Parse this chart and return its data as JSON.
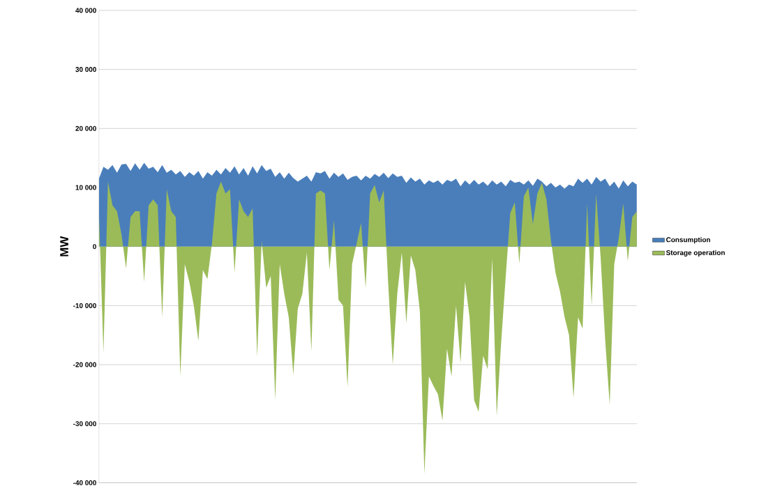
{
  "chart_data": {
    "type": "area",
    "ylabel": "MW",
    "categories": [
      null,
      null,
      null,
      null,
      null,
      null,
      null,
      null,
      null,
      null,
      null,
      null,
      null,
      null,
      null,
      null,
      null,
      null,
      null,
      null,
      null,
      null,
      null,
      null,
      null,
      null,
      null,
      null,
      null,
      null,
      null,
      null,
      null,
      null,
      null,
      null,
      null,
      null,
      null,
      null,
      null,
      null,
      null,
      null,
      null,
      null,
      null,
      null,
      null,
      null,
      null,
      null,
      null,
      null,
      null,
      null,
      null,
      null,
      null,
      null,
      null,
      null,
      null,
      null,
      null,
      null,
      null,
      null,
      null,
      null,
      null,
      null,
      null,
      null,
      null,
      null,
      null,
      null,
      null,
      null,
      null,
      null,
      null,
      null,
      null,
      null,
      null,
      null,
      null,
      null,
      null,
      null,
      null,
      null,
      null,
      null,
      null,
      null,
      null,
      null,
      null,
      null,
      null,
      null,
      null,
      null,
      null,
      null,
      null,
      null,
      null,
      null,
      null,
      null,
      null,
      null,
      null,
      null,
      null,
      null
    ],
    "series": [
      {
        "name": "Consumption",
        "color": "#4a7ebb",
        "values": [
          11500,
          13500,
          13000,
          13800,
          12500,
          13900,
          14000,
          12800,
          14100,
          13000,
          14200,
          13200,
          13500,
          12600,
          13800,
          12500,
          13000,
          12200,
          12800,
          11800,
          12600,
          12000,
          12800,
          11500,
          12600,
          12000,
          13000,
          12200,
          13300,
          12500,
          13600,
          12200,
          13300,
          12000,
          13600,
          12400,
          13800,
          12800,
          13200,
          11800,
          12600,
          11500,
          12500,
          11600,
          11000,
          11500,
          12000,
          11000,
          12600,
          12400,
          12800,
          11500,
          12500,
          11800,
          12400,
          11300,
          11800,
          12000,
          11200,
          12000,
          11500,
          12300,
          11800,
          12500,
          11600,
          12400,
          11800,
          12000,
          10800,
          11700,
          11000,
          11500,
          10500,
          11200,
          10800,
          11200,
          10500,
          11300,
          11000,
          11500,
          10200,
          11200,
          10500,
          11300,
          10500,
          11000,
          10300,
          11200,
          10500,
          11000,
          10200,
          11300,
          10800,
          11000,
          10500,
          11200,
          10300,
          11500,
          11000,
          10200,
          10800,
          10000,
          10500,
          9800,
          10500,
          10200,
          11500,
          10800,
          11500,
          10500,
          11800,
          11000,
          11500,
          10200,
          11000,
          9800,
          11200,
          10200,
          11000,
          10500
        ]
      },
      {
        "name": "Storage operation",
        "color": "#9bbb59",
        "values": [
          6000,
          -18000,
          11000,
          7000,
          6000,
          2000,
          -3700,
          5000,
          6000,
          6000,
          -6000,
          7000,
          8000,
          7000,
          -12000,
          9700,
          6000,
          5000,
          -22000,
          -3000,
          -6000,
          -10000,
          -16000,
          -4000,
          -5500,
          500,
          9000,
          11000,
          9000,
          9700,
          -4400,
          8000,
          6000,
          5000,
          6500,
          -18700,
          1000,
          -7000,
          -5000,
          -26000,
          -3000,
          -8000,
          -12000,
          -21700,
          -10500,
          -8000,
          -1000,
          -17800,
          9000,
          9500,
          9000,
          -4000,
          4500,
          -9000,
          -10000,
          -23800,
          -3000,
          500,
          4000,
          -7000,
          9000,
          10400,
          7500,
          9500,
          -6400,
          -20000,
          -8000,
          -1000,
          -13000,
          -1500,
          -4000,
          -11000,
          -38500,
          -22000,
          -23600,
          -25000,
          -29500,
          -17300,
          -22000,
          -10000,
          -19700,
          -6000,
          -12000,
          -26000,
          -28000,
          -18500,
          -20800,
          -2000,
          -28700,
          -16000,
          -5000,
          5700,
          7500,
          -2900,
          8500,
          10000,
          3800,
          9000,
          10800,
          8000,
          1000,
          -4400,
          -7600,
          -11900,
          -15000,
          -25600,
          -12000,
          -13900,
          7300,
          -10000,
          8900,
          -2000,
          -15900,
          -26800,
          -3000,
          1500,
          7300,
          -2500,
          5000,
          6000
        ]
      }
    ],
    "ylim": [
      -40000,
      40000
    ],
    "yticks": [
      {
        "value": -40000,
        "label": "-40 000"
      },
      {
        "value": -30000,
        "label": "-30 000"
      },
      {
        "value": -20000,
        "label": "-20 000"
      },
      {
        "value": -10000,
        "label": "-10 000"
      },
      0,
      {
        "value": 10000,
        "label": "10 000"
      },
      {
        "value": 20000,
        "label": "20 000"
      },
      {
        "value": 30000,
        "label": "30 000"
      },
      {
        "value": 40000,
        "label": "40 000"
      }
    ],
    "grid": "y",
    "legend": "right",
    "tick_labels": "y"
  }
}
